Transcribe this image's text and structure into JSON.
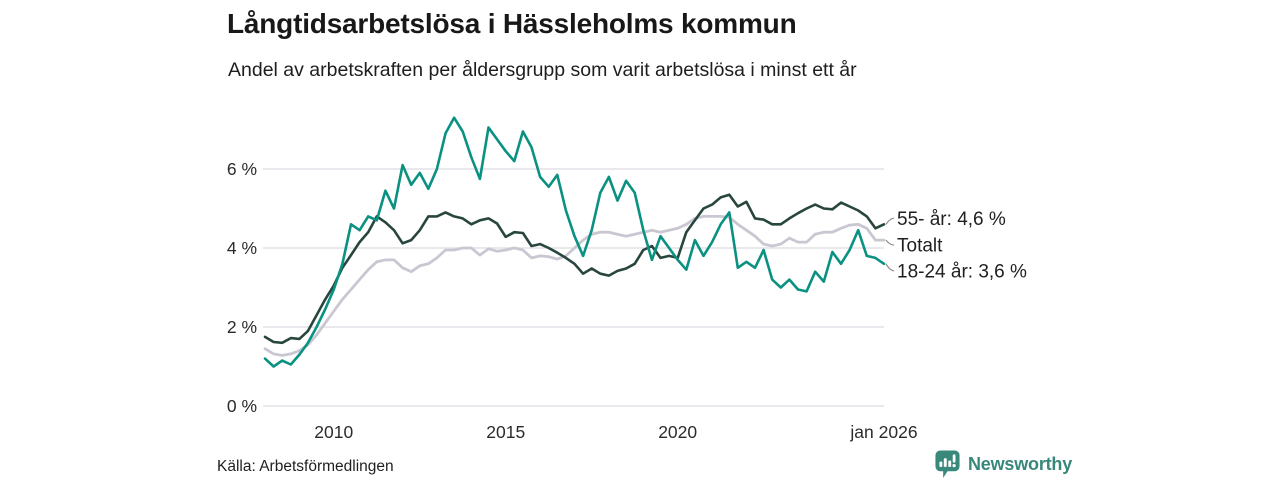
{
  "chart_data": {
    "type": "line",
    "title": "Långtidsarbetslösa i Hässleholms kommun",
    "subtitle": "Andel av arbetskraften per åldersgrupp som varit arbetslösa i minst ett år",
    "xlim": [
      2008,
      2026
    ],
    "ylim": [
      0,
      7.5
    ],
    "grid": "horizontal",
    "legend_position": "right-of-line-ends",
    "x": [
      2008.0,
      2008.25,
      2008.5,
      2008.75,
      2009.0,
      2009.25,
      2009.5,
      2009.75,
      2010.0,
      2010.25,
      2010.5,
      2010.75,
      2011.0,
      2011.25,
      2011.5,
      2011.75,
      2012.0,
      2012.25,
      2012.5,
      2012.75,
      2013.0,
      2013.25,
      2013.5,
      2013.75,
      2014.0,
      2014.25,
      2014.5,
      2014.75,
      2015.0,
      2015.25,
      2015.5,
      2015.75,
      2016.0,
      2016.25,
      2016.5,
      2016.75,
      2017.0,
      2017.25,
      2017.5,
      2017.75,
      2018.0,
      2018.25,
      2018.5,
      2018.75,
      2019.0,
      2019.25,
      2019.5,
      2019.75,
      2020.0,
      2020.25,
      2020.5,
      2020.75,
      2021.0,
      2021.25,
      2021.5,
      2021.75,
      2022.0,
      2022.25,
      2022.5,
      2022.75,
      2023.0,
      2023.25,
      2023.5,
      2023.75,
      2024.0,
      2024.25,
      2024.5,
      2024.75,
      2025.0,
      2025.25,
      2025.5,
      2025.75,
      2026.0
    ],
    "series": [
      {
        "name": "55- år",
        "label": "55- år: 4,6 %",
        "end_value_label": "4,6 %",
        "color": "#29463e",
        "values": [
          1.75,
          1.62,
          1.6,
          1.72,
          1.7,
          1.9,
          2.3,
          2.7,
          3.05,
          3.5,
          3.82,
          4.15,
          4.4,
          4.8,
          4.65,
          4.45,
          4.12,
          4.2,
          4.45,
          4.8,
          4.8,
          4.9,
          4.8,
          4.75,
          4.6,
          4.7,
          4.75,
          4.62,
          4.28,
          4.4,
          4.38,
          4.05,
          4.1,
          4.0,
          3.88,
          3.75,
          3.6,
          3.35,
          3.48,
          3.35,
          3.3,
          3.42,
          3.48,
          3.6,
          3.95,
          4.05,
          3.75,
          3.8,
          3.75,
          4.4,
          4.7,
          5.0,
          5.1,
          5.28,
          5.35,
          5.05,
          5.17,
          4.75,
          4.72,
          4.6,
          4.6,
          4.75,
          4.88,
          5.0,
          5.1,
          5.0,
          4.98,
          5.15,
          5.05,
          4.95,
          4.8,
          4.5,
          4.6
        ]
      },
      {
        "name": "Totalt",
        "label": "Totalt",
        "end_value_label": "",
        "color": "#c9c8d2",
        "values": [
          1.45,
          1.32,
          1.28,
          1.32,
          1.4,
          1.55,
          1.8,
          2.1,
          2.4,
          2.7,
          2.95,
          3.2,
          3.45,
          3.65,
          3.7,
          3.7,
          3.5,
          3.4,
          3.55,
          3.6,
          3.75,
          3.95,
          3.95,
          4.0,
          4.0,
          3.82,
          3.98,
          3.92,
          3.95,
          4.0,
          3.95,
          3.75,
          3.8,
          3.78,
          3.72,
          3.8,
          4.0,
          4.2,
          4.35,
          4.4,
          4.4,
          4.35,
          4.3,
          4.35,
          4.4,
          4.45,
          4.4,
          4.45,
          4.5,
          4.6,
          4.75,
          4.8,
          4.8,
          4.8,
          4.78,
          4.6,
          4.45,
          4.3,
          4.1,
          4.05,
          4.1,
          4.25,
          4.15,
          4.15,
          4.35,
          4.4,
          4.4,
          4.5,
          4.58,
          4.6,
          4.5,
          4.2,
          4.2
        ]
      },
      {
        "name": "18-24 år",
        "label": "18-24 år: 3,6 %",
        "end_value_label": "3,6 %",
        "color": "#0a9181",
        "values": [
          1.2,
          1.0,
          1.15,
          1.05,
          1.3,
          1.6,
          2.0,
          2.45,
          2.95,
          3.6,
          4.6,
          4.45,
          4.8,
          4.7,
          5.45,
          5.0,
          6.1,
          5.6,
          5.9,
          5.5,
          6.0,
          6.9,
          7.3,
          6.95,
          6.3,
          5.75,
          7.05,
          6.75,
          6.45,
          6.2,
          6.95,
          6.55,
          5.8,
          5.55,
          5.85,
          4.95,
          4.3,
          3.8,
          4.45,
          5.4,
          5.8,
          5.2,
          5.7,
          5.4,
          4.45,
          3.7,
          4.3,
          4.0,
          3.7,
          3.45,
          4.2,
          3.8,
          4.15,
          4.6,
          4.9,
          3.5,
          3.65,
          3.5,
          3.95,
          3.2,
          3.0,
          3.2,
          2.95,
          2.9,
          3.4,
          3.15,
          3.9,
          3.6,
          3.95,
          4.45,
          3.8,
          3.75,
          3.6
        ]
      }
    ],
    "y_ticks": [
      {
        "value": 0,
        "label": "0 %"
      },
      {
        "value": 2,
        "label": "2 %"
      },
      {
        "value": 4,
        "label": "4 %"
      },
      {
        "value": 6,
        "label": "6 %"
      }
    ],
    "x_ticks": [
      {
        "value": 2010,
        "label": "2010"
      },
      {
        "value": 2015,
        "label": "2015"
      },
      {
        "value": 2020,
        "label": "2020"
      },
      {
        "value": 2026,
        "label": "jan 2026"
      }
    ]
  },
  "footer": {
    "source": "Källa: Arbetsförmedlingen",
    "brand": "Newsworthy"
  },
  "colors": {
    "series_55": "#29463e",
    "series_total": "#c9c8d2",
    "series_18_24": "#0a9181",
    "grid": "#e2e2e7",
    "brand": "#37887b"
  }
}
